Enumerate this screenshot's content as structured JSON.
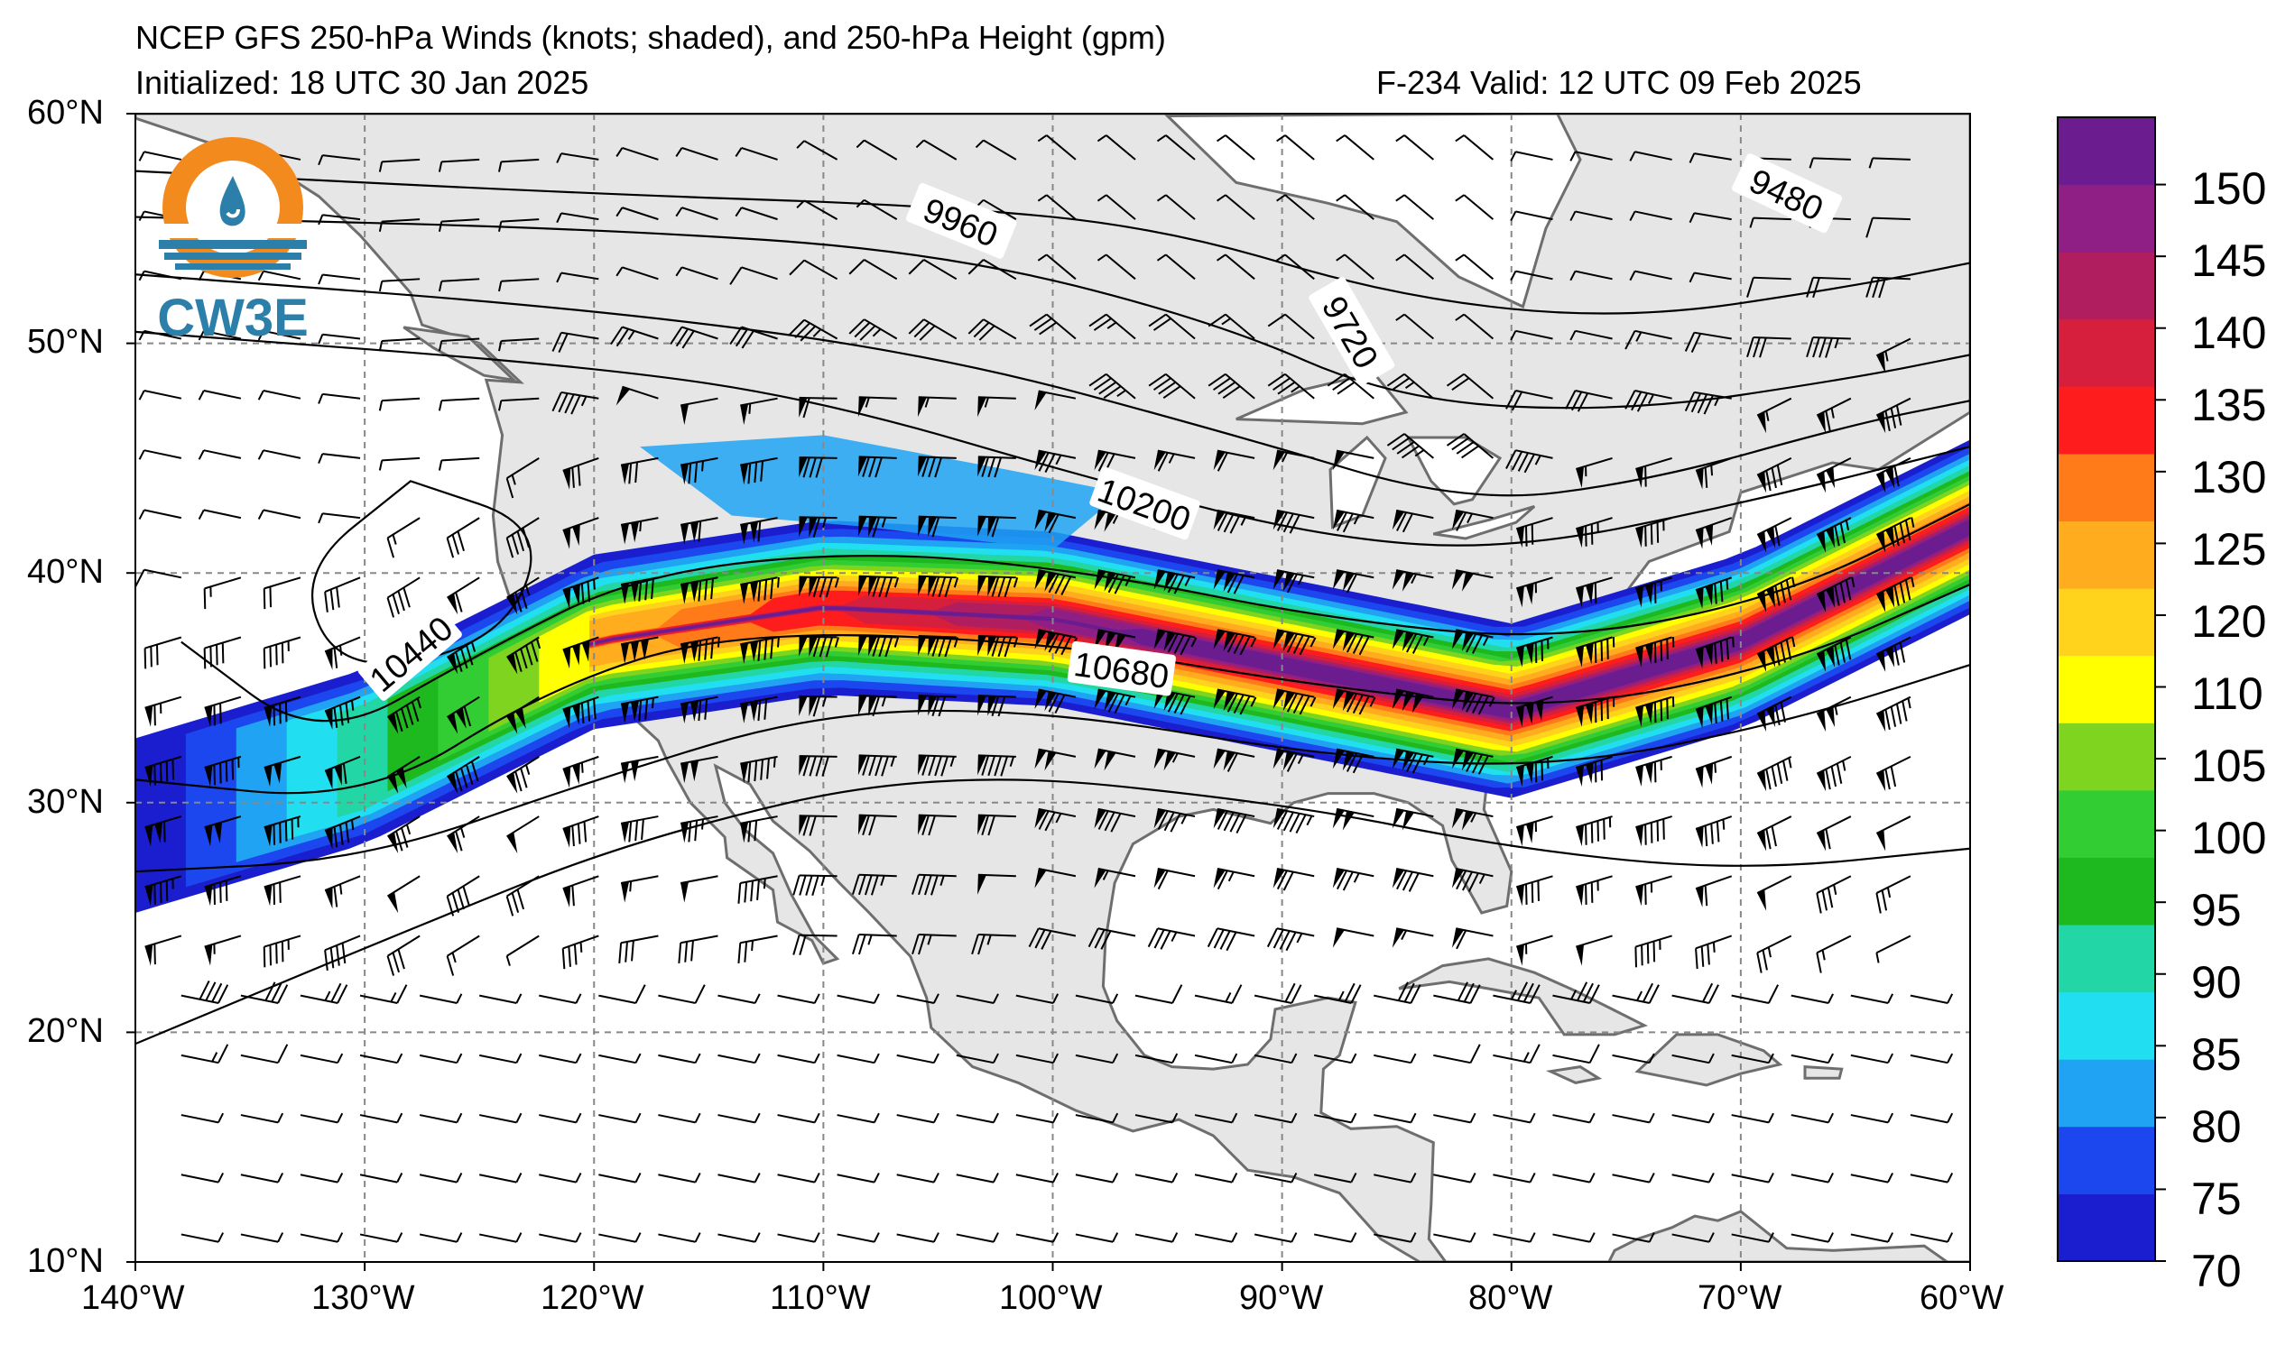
{
  "title": {
    "line1": "NCEP GFS 250-hPa Winds (knots; shaded), and 250-hPa Height (gpm)",
    "line2_left": "Initialized: 18 UTC 30 Jan 2025",
    "line2_right": "F-234  Valid: 12 UTC 09 Feb 2025"
  },
  "logo": {
    "text": "CW3E"
  },
  "map": {
    "projection": "lat-lon",
    "extent": {
      "lon_min": -140,
      "lon_max": -60,
      "lat_min": 10,
      "lat_max": 60
    },
    "land_color": "#e6e6e6",
    "ocean_color": "#ffffff",
    "coast_color": "#6e6e6e",
    "grid": "dashed"
  },
  "axes": {
    "lat_labels": [
      "60°N",
      "50°N",
      "40°N",
      "30°N",
      "20°N",
      "10°N"
    ],
    "lon_labels": [
      "140°W",
      "130°W",
      "120°W",
      "110°W",
      "100°W",
      "90°W",
      "80°W",
      "70°W",
      "60°W"
    ]
  },
  "contours": {
    "labels": [
      "9480",
      "9720",
      "9960",
      "10200",
      "10440",
      "10680"
    ]
  },
  "colorbar": {
    "ticks": [
      "70",
      "75",
      "80",
      "85",
      "90",
      "95",
      "100",
      "105",
      "110",
      "120",
      "125",
      "130",
      "135",
      "140",
      "145",
      "150"
    ],
    "colors": [
      "#1a1ecf",
      "#1c47ee",
      "#1fa3f2",
      "#21dff0",
      "#22d6a6",
      "#1eb81f",
      "#32cd32",
      "#7fd41f",
      "#ffff00",
      "#ffd21c",
      "#ffad1f",
      "#ff7b1a",
      "#ff1c1c",
      "#d61f3c",
      "#b01e60",
      "#8f1e85",
      "#6b1c8f"
    ]
  },
  "chart_data": {
    "type": "heatmap",
    "title": "NCEP GFS 250-hPa Winds (knots; shaded), and 250-hPa Height (gpm)",
    "xlabel": "",
    "ylabel": "",
    "xlim": [
      -140,
      -60
    ],
    "ylim": [
      10,
      60
    ],
    "variable": "250-hPa wind speed (knots)",
    "color_levels": [
      70,
      75,
      80,
      85,
      90,
      95,
      100,
      105,
      110,
      120,
      125,
      130,
      135,
      140,
      145,
      150
    ],
    "jet_axis_lonlat": [
      [
        -140,
        29
      ],
      [
        -130,
        32
      ],
      [
        -122,
        37
      ],
      [
        -114,
        38.5
      ],
      [
        -100,
        38
      ],
      [
        -90,
        36
      ],
      [
        -80,
        34
      ],
      [
        -70,
        37
      ],
      [
        -60,
        42
      ]
    ],
    "jet_max_knots": 150,
    "height_contours": [
      {
        "value": 9480,
        "label_lon": -68,
        "label_lat": 56.5
      },
      {
        "value": 9720,
        "label_lon": -87,
        "label_lat": 50.5
      },
      {
        "value": 9960,
        "label_lon": -104,
        "label_lat": 55.3
      },
      {
        "value": 10200,
        "label_lon": -96,
        "label_lat": 43
      },
      {
        "value": 10440,
        "label_lon": -128,
        "label_lat": 36.5
      },
      {
        "value": 10680,
        "label_lon": -97,
        "label_lat": 35.8
      }
    ]
  }
}
